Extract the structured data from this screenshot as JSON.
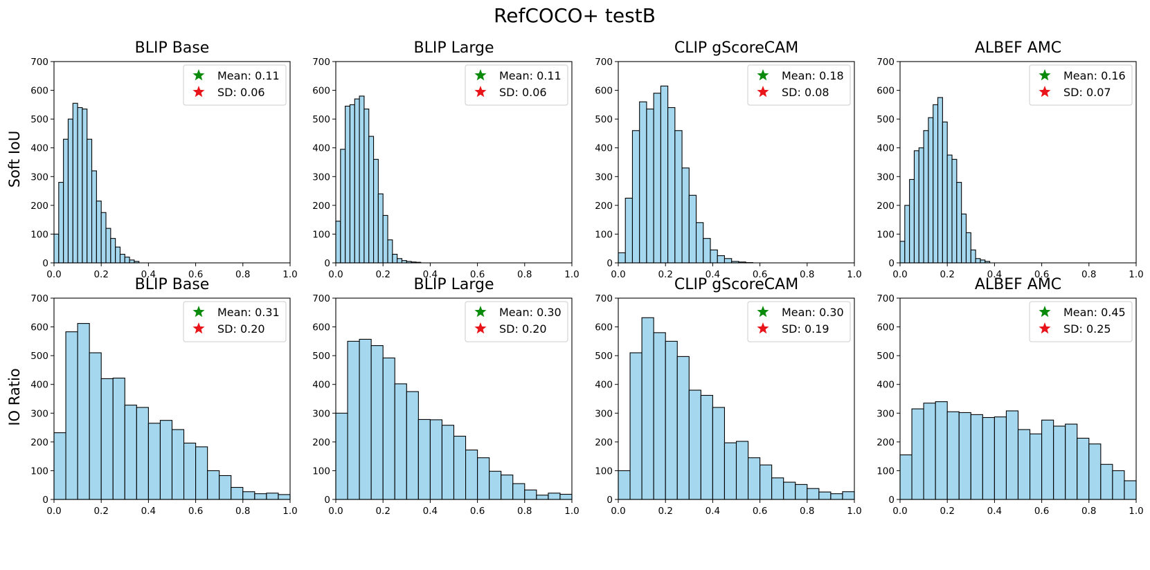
{
  "figure_title": "RefCOCO+ testB",
  "colors": {
    "bar_fill": "#a5d8ee",
    "bar_edge": "#000000",
    "mean_star": "#0a8a0a",
    "sd_star": "#e8141a"
  },
  "row_labels": [
    "Soft IoU",
    "IO Ratio"
  ],
  "column_titles": [
    "BLIP Base",
    "BLIP Large",
    "CLIP gScoreCAM",
    "ALBEF AMC"
  ],
  "chart_data": [
    {
      "type": "bar",
      "row": 0,
      "col": 0,
      "title": "BLIP Base",
      "ylabel": "Soft IoU",
      "xlabel": "",
      "xlim": [
        0,
        1
      ],
      "ylim": [
        0,
        700
      ],
      "bin_width": 0.02,
      "xticks": [
        "0.0",
        "0.2",
        "0.4",
        "0.6",
        "0.8",
        "1.0"
      ],
      "yticks": [
        "0",
        "100",
        "200",
        "300",
        "400",
        "500",
        "600",
        "700"
      ],
      "values": [
        100,
        280,
        430,
        500,
        555,
        540,
        535,
        430,
        320,
        215,
        175,
        120,
        85,
        55,
        30,
        20,
        10,
        5
      ],
      "legend": {
        "mean": "Mean: 0.11",
        "sd": "SD: 0.06"
      }
    },
    {
      "type": "bar",
      "row": 0,
      "col": 1,
      "title": "BLIP Large",
      "ylabel": "Soft IoU",
      "xlabel": "",
      "xlim": [
        0,
        1
      ],
      "ylim": [
        0,
        700
      ],
      "bin_width": 0.02,
      "xticks": [
        "0.0",
        "0.2",
        "0.4",
        "0.6",
        "0.8",
        "1.0"
      ],
      "yticks": [
        "0",
        "100",
        "200",
        "300",
        "400",
        "500",
        "600",
        "700"
      ],
      "values": [
        145,
        395,
        545,
        550,
        570,
        580,
        535,
        440,
        360,
        240,
        165,
        80,
        30,
        15,
        8,
        5,
        3,
        2
      ],
      "legend": {
        "mean": "Mean: 0.11",
        "sd": "SD: 0.06"
      }
    },
    {
      "type": "bar",
      "row": 0,
      "col": 2,
      "title": "CLIP gScoreCAM",
      "ylabel": "Soft IoU",
      "xlabel": "",
      "xlim": [
        0,
        1
      ],
      "ylim": [
        0,
        700
      ],
      "bin_width": 0.03,
      "xticks": [
        "0.0",
        "0.2",
        "0.4",
        "0.6",
        "0.8",
        "1.0"
      ],
      "yticks": [
        "0",
        "100",
        "200",
        "300",
        "400",
        "500",
        "600",
        "700"
      ],
      "values": [
        35,
        225,
        460,
        560,
        535,
        590,
        615,
        540,
        460,
        330,
        235,
        140,
        85,
        45,
        25,
        15,
        5,
        3,
        1
      ],
      "legend": {
        "mean": "Mean: 0.18",
        "sd": "SD: 0.08"
      }
    },
    {
      "type": "bar",
      "row": 0,
      "col": 3,
      "title": "ALBEF AMC",
      "ylabel": "Soft IoU",
      "xlabel": "",
      "xlim": [
        0,
        1
      ],
      "ylim": [
        0,
        700
      ],
      "bin_width": 0.02,
      "xticks": [
        "0.0",
        "0.2",
        "0.4",
        "0.6",
        "0.8",
        "1.0"
      ],
      "yticks": [
        "0",
        "100",
        "200",
        "300",
        "400",
        "500",
        "600",
        "700"
      ],
      "values": [
        75,
        200,
        290,
        390,
        400,
        460,
        505,
        550,
        575,
        490,
        375,
        360,
        280,
        170,
        105,
        45,
        15,
        10,
        5
      ],
      "legend": {
        "mean": "Mean: 0.16",
        "sd": "SD: 0.07"
      }
    },
    {
      "type": "bar",
      "row": 1,
      "col": 0,
      "title": "BLIP Base",
      "ylabel": "IO Ratio",
      "xlabel": "",
      "xlim": [
        0,
        1
      ],
      "ylim": [
        0,
        700
      ],
      "bin_width": 0.05,
      "xticks": [
        "0.0",
        "0.2",
        "0.4",
        "0.6",
        "0.8",
        "1.0"
      ],
      "yticks": [
        "0",
        "100",
        "200",
        "300",
        "400",
        "500",
        "600",
        "700"
      ],
      "values": [
        232,
        583,
        612,
        510,
        420,
        422,
        328,
        320,
        265,
        275,
        243,
        196,
        183,
        100,
        83,
        42,
        27,
        20,
        22,
        17
      ],
      "legend": {
        "mean": "Mean: 0.31",
        "sd": "SD: 0.20"
      }
    },
    {
      "type": "bar",
      "row": 1,
      "col": 1,
      "title": "BLIP Large",
      "ylabel": "IO Ratio",
      "xlabel": "",
      "xlim": [
        0,
        1
      ],
      "ylim": [
        0,
        700
      ],
      "bin_width": 0.05,
      "xticks": [
        "0.0",
        "0.2",
        "0.4",
        "0.6",
        "0.8",
        "1.0"
      ],
      "yticks": [
        "0",
        "100",
        "200",
        "300",
        "400",
        "500",
        "600",
        "700"
      ],
      "values": [
        300,
        550,
        557,
        535,
        492,
        402,
        375,
        278,
        277,
        258,
        220,
        172,
        145,
        98,
        85,
        55,
        33,
        15,
        22,
        18
      ],
      "legend": {
        "mean": "Mean: 0.30",
        "sd": "SD: 0.20"
      }
    },
    {
      "type": "bar",
      "row": 1,
      "col": 2,
      "title": "CLIP gScoreCAM",
      "ylabel": "IO Ratio",
      "xlabel": "",
      "xlim": [
        0,
        1
      ],
      "ylim": [
        0,
        700
      ],
      "bin_width": 0.05,
      "xticks": [
        "0.0",
        "0.2",
        "0.4",
        "0.6",
        "0.8",
        "1.0"
      ],
      "yticks": [
        "0",
        "100",
        "200",
        "300",
        "400",
        "500",
        "600",
        "700"
      ],
      "values": [
        100,
        510,
        632,
        580,
        550,
        497,
        380,
        362,
        320,
        197,
        202,
        145,
        120,
        75,
        60,
        52,
        38,
        26,
        20,
        27
      ],
      "legend": {
        "mean": "Mean: 0.30",
        "sd": "SD: 0.19"
      }
    },
    {
      "type": "bar",
      "row": 1,
      "col": 3,
      "title": "ALBEF AMC",
      "ylabel": "IO Ratio",
      "xlabel": "",
      "xlim": [
        0,
        1
      ],
      "ylim": [
        0,
        700
      ],
      "bin_width": 0.05,
      "xticks": [
        "0.0",
        "0.2",
        "0.4",
        "0.6",
        "0.8",
        "1.0"
      ],
      "yticks": [
        "0",
        "100",
        "200",
        "300",
        "400",
        "500",
        "600",
        "700"
      ],
      "values": [
        155,
        315,
        335,
        340,
        305,
        302,
        295,
        285,
        287,
        308,
        243,
        228,
        276,
        255,
        262,
        213,
        193,
        122,
        100,
        65
      ],
      "legend": {
        "mean": "Mean: 0.45",
        "sd": "SD: 0.25"
      }
    }
  ]
}
